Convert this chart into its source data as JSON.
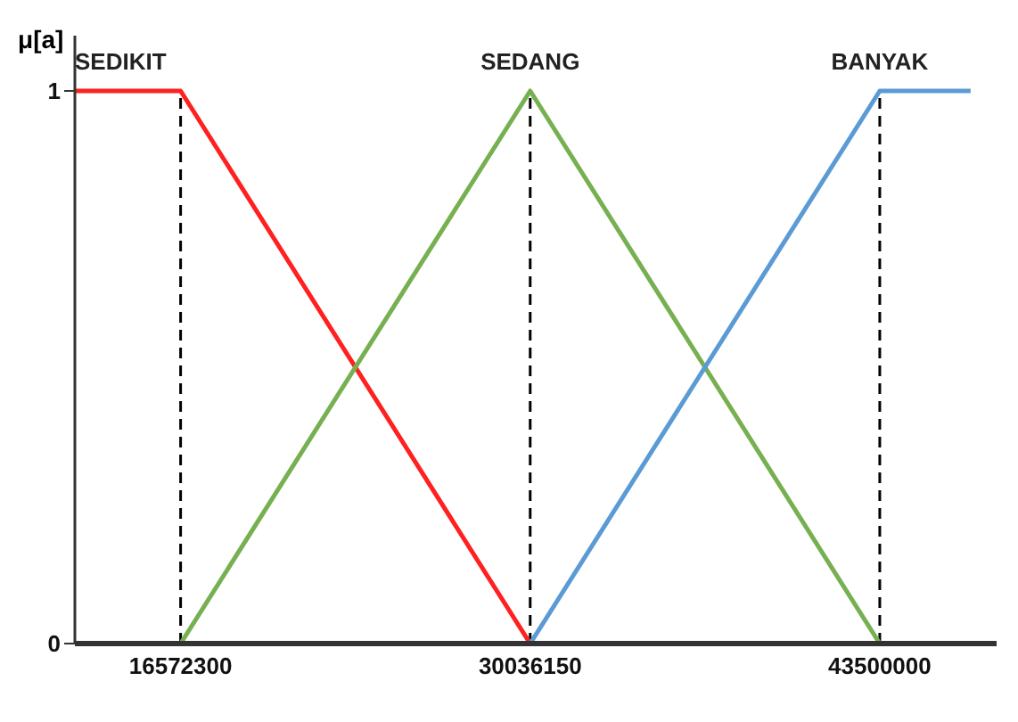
{
  "chart_data": {
    "type": "line",
    "ylabel": "μ[a]",
    "xlim": [
      12500000,
      48000000
    ],
    "xticks": [
      16572300,
      30036150,
      43500000
    ],
    "ylim": [
      0,
      1.1
    ],
    "yticks": [
      0,
      1
    ],
    "grid": false,
    "legend": false,
    "marker": "none",
    "line_style": "solid",
    "series": [
      {
        "name": "SEDIKIT",
        "color": "#ff2020",
        "x": [
          12500000,
          16572300,
          30036150
        ],
        "values": [
          1,
          1,
          0
        ]
      },
      {
        "name": "SEDANG",
        "color": "#77b050",
        "x": [
          16572300,
          30036150,
          43500000
        ],
        "values": [
          0,
          1,
          0
        ]
      },
      {
        "name": "BANYAK",
        "color": "#5b9bd5",
        "x": [
          30036150,
          43500000,
          47000000
        ],
        "values": [
          0,
          1,
          1
        ]
      }
    ],
    "ref_lines": [
      {
        "axis": "x",
        "value": 16572300,
        "color": "#000000",
        "line_style": "dashed"
      },
      {
        "axis": "x",
        "value": 30036150,
        "color": "#000000",
        "line_style": "dashed"
      },
      {
        "axis": "x",
        "value": 43500000,
        "color": "#000000",
        "line_style": "dashed"
      }
    ]
  }
}
